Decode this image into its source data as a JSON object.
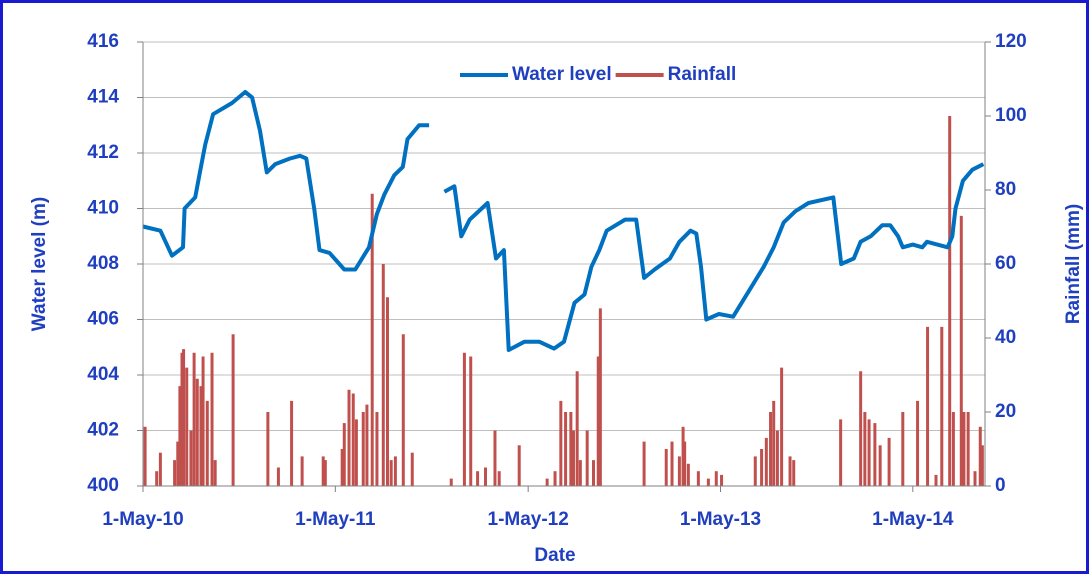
{
  "chart_data": {
    "type": "line",
    "x_label": "Date",
    "y_label": "Water level (m)",
    "y2_label": "Rainfall (mm)",
    "legend": "top-center",
    "grid": true,
    "xlim": [
      "2010-05-01",
      "2014-09-15"
    ],
    "xticks": [
      {
        "value": "2010-05-01",
        "label": "1-May-10"
      },
      {
        "value": "2011-05-01",
        "label": "1-May-11"
      },
      {
        "value": "2012-05-01",
        "label": "1-May-12"
      },
      {
        "value": "2013-05-01",
        "label": "1-May-13"
      },
      {
        "value": "2014-05-01",
        "label": "1-May-14"
      }
    ],
    "ylim": [
      400,
      416
    ],
    "yticks": [
      400,
      402,
      404,
      406,
      408,
      410,
      412,
      414,
      416
    ],
    "y2lim": [
      0,
      120
    ],
    "y2ticks": [
      0,
      20,
      40,
      60,
      80,
      100,
      120
    ],
    "series": [
      {
        "name": "Water level",
        "color": "#0070c0",
        "axis": "y",
        "style": "line",
        "x": [
          "2010-05-01",
          "2010-06-03",
          "2010-06-25",
          "2010-07-16",
          "2010-07-19",
          "2010-08-08",
          "2010-08-17",
          "2010-08-27",
          "2010-09-11",
          "2010-10-17",
          "2010-11-11",
          "2010-11-24",
          "2010-12-09",
          "2010-12-22",
          "2011-01-07",
          "2011-02-04",
          "2011-02-23",
          "2011-03-07",
          "2011-03-22",
          "2011-04-01",
          "2011-04-20",
          "2011-05-18",
          "2011-06-08",
          "2011-07-04",
          "2011-07-19",
          "2011-08-02",
          "2011-08-21",
          "2011-09-06",
          "2011-09-15",
          "2011-10-07",
          "2011-10-26",
          "2011-11-10",
          "2011-11-24",
          "2011-12-13",
          "2011-12-26",
          "2012-01-11",
          "2012-02-14",
          "2012-03-01",
          "2012-03-16",
          "2012-03-25",
          "2012-04-24",
          "2012-05-22",
          "2012-06-19",
          "2012-07-08",
          "2012-07-28",
          "2012-08-16",
          "2012-08-29",
          "2012-09-13",
          "2012-09-27",
          "2012-11-01",
          "2012-11-22",
          "2012-12-07",
          "2012-12-27",
          "2013-01-25",
          "2013-02-12",
          "2013-03-05",
          "2013-03-16",
          "2013-03-25",
          "2013-04-04",
          "2013-04-28",
          "2013-05-25",
          "2013-06-23",
          "2013-07-22",
          "2013-08-10",
          "2013-08-29",
          "2013-09-20",
          "2013-10-15",
          "2013-12-01",
          "2013-12-16",
          "2014-01-09",
          "2014-01-22",
          "2014-02-10",
          "2014-03-04",
          "2014-03-19",
          "2014-04-03",
          "2014-04-12",
          "2014-05-01",
          "2014-05-19",
          "2014-05-28",
          "2014-07-06",
          "2014-07-15",
          "2014-07-21",
          "2014-08-04",
          "2014-08-22",
          "2014-09-12"
        ],
        "values": [
          409.35,
          409.2,
          408.3,
          408.6,
          410.0,
          410.4,
          411.3,
          412.3,
          413.4,
          413.8,
          414.2,
          414.0,
          412.8,
          411.3,
          411.6,
          411.8,
          411.9,
          411.8,
          410.0,
          408.5,
          408.4,
          407.8,
          407.8,
          408.6,
          409.8,
          410.5,
          411.2,
          411.5,
          412.5,
          413.0,
          413.0,
          null,
          410.6,
          410.8,
          409.0,
          409.6,
          410.2,
          408.2,
          408.5,
          404.9,
          405.2,
          405.2,
          404.95,
          405.2,
          406.6,
          406.9,
          407.9,
          408.5,
          409.2,
          409.6,
          409.6,
          407.5,
          407.8,
          408.2,
          408.8,
          409.2,
          409.1,
          407.9,
          406.0,
          406.2,
          406.1,
          407.0,
          407.9,
          408.6,
          409.5,
          409.9,
          410.2,
          410.4,
          408.0,
          408.2,
          408.8,
          409.0,
          409.4,
          409.4,
          409.0,
          408.6,
          408.7,
          408.6,
          408.8,
          408.6,
          409.0,
          410.0,
          411.0,
          411.4,
          411.6
        ]
      },
      {
        "name": "Rainfall",
        "color": "#c0504d",
        "axis": "y2",
        "style": "spikes",
        "x": [
          "2010-05-05",
          "2010-05-27",
          "2010-06-03",
          "2010-06-30",
          "2010-07-06",
          "2010-07-10",
          "2010-07-14",
          "2010-07-17",
          "2010-07-23",
          "2010-07-31",
          "2010-08-06",
          "2010-08-12",
          "2010-08-19",
          "2010-08-23",
          "2010-08-31",
          "2010-09-09",
          "2010-09-15",
          "2010-10-19",
          "2010-12-24",
          "2011-01-13",
          "2011-02-07",
          "2011-02-27",
          "2011-04-08",
          "2011-04-12",
          "2011-05-14",
          "2011-05-18",
          "2011-05-27",
          "2011-06-04",
          "2011-06-10",
          "2011-06-23",
          "2011-06-30",
          "2011-07-10",
          "2011-07-19",
          "2011-07-31",
          "2011-08-08",
          "2011-08-15",
          "2011-08-23",
          "2011-09-07",
          "2011-09-24",
          "2011-12-07",
          "2012-01-01",
          "2012-01-13",
          "2012-01-26",
          "2012-02-10",
          "2012-02-28",
          "2012-03-07",
          "2012-04-14",
          "2012-06-06",
          "2012-06-21",
          "2012-07-02",
          "2012-07-11",
          "2012-07-21",
          "2012-07-26",
          "2012-08-02",
          "2012-08-08",
          "2012-08-21",
          "2012-09-02",
          "2012-09-11",
          "2012-09-15",
          "2012-12-07",
          "2013-01-18",
          "2013-01-29",
          "2013-02-12",
          "2013-02-19",
          "2013-02-22",
          "2013-03-01",
          "2013-03-20",
          "2013-04-08",
          "2013-04-23",
          "2013-05-03",
          "2013-07-06",
          "2013-07-18",
          "2013-07-27",
          "2013-08-04",
          "2013-08-10",
          "2013-08-17",
          "2013-08-25",
          "2013-09-10",
          "2013-09-17",
          "2013-12-15",
          "2014-01-22",
          "2014-01-30",
          "2014-02-07",
          "2014-02-18",
          "2014-02-28",
          "2014-03-17",
          "2014-04-12",
          "2014-05-10",
          "2014-05-29",
          "2014-06-14",
          "2014-06-25",
          "2014-07-10",
          "2014-07-17",
          "2014-08-01",
          "2014-08-06",
          "2014-08-14",
          "2014-08-27",
          "2014-09-06",
          "2014-09-10"
        ],
        "values": [
          16,
          4,
          9,
          7,
          12,
          27,
          36,
          37,
          32,
          15,
          36,
          29,
          27,
          35,
          23,
          36,
          7,
          41,
          20,
          5,
          23,
          8,
          8,
          7,
          10,
          17,
          26,
          25,
          18,
          20,
          22,
          79,
          20,
          60,
          51,
          7,
          8,
          41,
          9,
          2,
          36,
          35,
          4,
          5,
          15,
          4,
          11,
          2,
          4,
          23,
          20,
          20,
          15,
          31,
          7,
          15,
          7,
          35,
          48,
          12,
          10,
          12,
          8,
          16,
          12,
          6,
          4,
          2,
          4,
          3,
          8,
          10,
          13,
          20,
          23,
          15,
          32,
          8,
          7,
          18,
          31,
          20,
          18,
          17,
          11,
          13,
          20,
          23,
          43,
          3,
          43,
          100,
          20,
          73,
          20,
          20,
          4,
          16,
          11
        ]
      }
    ]
  }
}
